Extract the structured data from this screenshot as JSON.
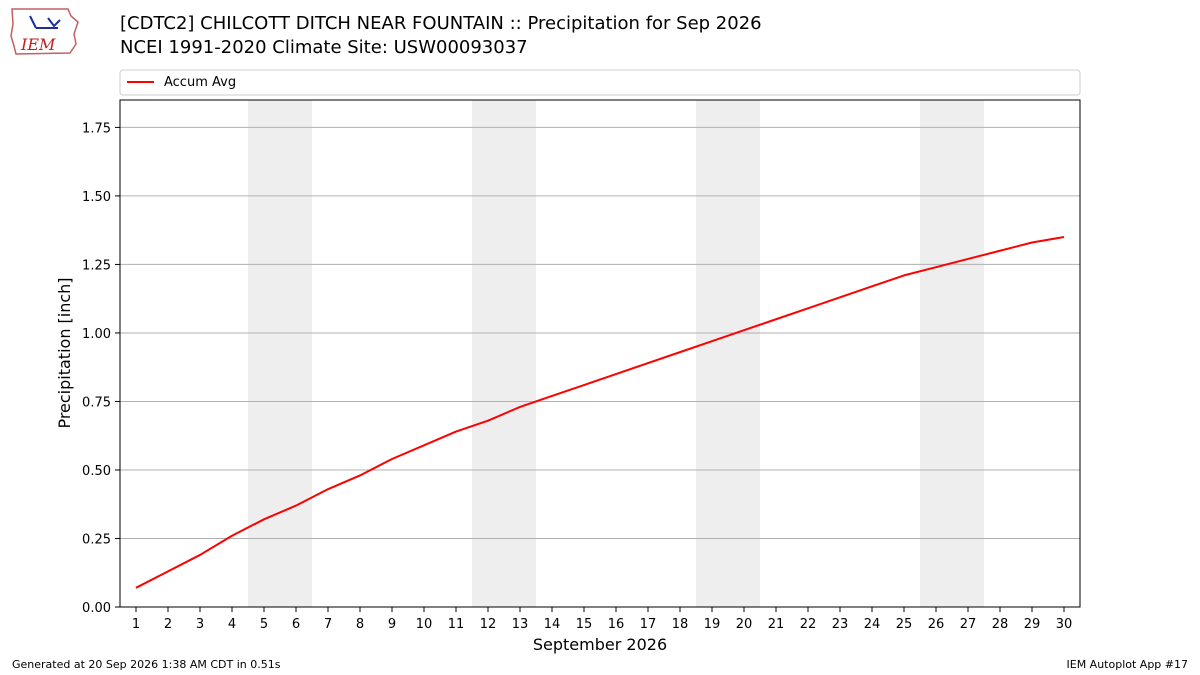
{
  "header": {
    "title_line1": "[CDTC2] CHILCOTT DITCH NEAR FOUNTAIN :: Precipitation for Sep 2026",
    "title_line2": "NCEI 1991-2020 Climate Site: USW00093037"
  },
  "logo": {
    "text": "IEM"
  },
  "footer": {
    "generated": "Generated at 20 Sep 2026 1:38 AM CDT in 0.51s",
    "app": "IEM Autoplot App #17"
  },
  "colors": {
    "series": "#ff0000",
    "weekend_band": "#eeeeee",
    "grid": "#b0b0b0"
  },
  "chart_data": {
    "type": "line",
    "xlabel": "September 2026",
    "ylabel": "Precipitation [inch]",
    "xlim": [
      0.5,
      30.5
    ],
    "ylim": [
      0,
      1.85
    ],
    "x": [
      1,
      2,
      3,
      4,
      5,
      6,
      7,
      8,
      9,
      10,
      11,
      12,
      13,
      14,
      15,
      16,
      17,
      18,
      19,
      20,
      21,
      22,
      23,
      24,
      25,
      26,
      27,
      28,
      29,
      30
    ],
    "yticks": [
      0.0,
      0.25,
      0.5,
      0.75,
      1.0,
      1.25,
      1.5,
      1.75
    ],
    "ytick_labels": [
      "0.00",
      "0.25",
      "0.50",
      "0.75",
      "1.00",
      "1.25",
      "1.50",
      "1.75"
    ],
    "grid": "horizontal",
    "legend": {
      "position": "top",
      "entries": [
        "Accum Avg"
      ]
    },
    "shaded_bands": [
      [
        4.5,
        6.5
      ],
      [
        11.5,
        13.5
      ],
      [
        18.5,
        20.5
      ],
      [
        25.5,
        27.5
      ]
    ],
    "series": [
      {
        "name": "Accum Avg",
        "color": "#ff0000",
        "values": [
          0.07,
          0.13,
          0.19,
          0.26,
          0.32,
          0.37,
          0.43,
          0.48,
          0.54,
          0.59,
          0.64,
          0.68,
          0.73,
          0.77,
          0.81,
          0.85,
          0.89,
          0.93,
          0.97,
          1.01,
          1.05,
          1.09,
          1.13,
          1.17,
          1.21,
          1.24,
          1.27,
          1.3,
          1.33,
          1.35
        ]
      }
    ]
  }
}
